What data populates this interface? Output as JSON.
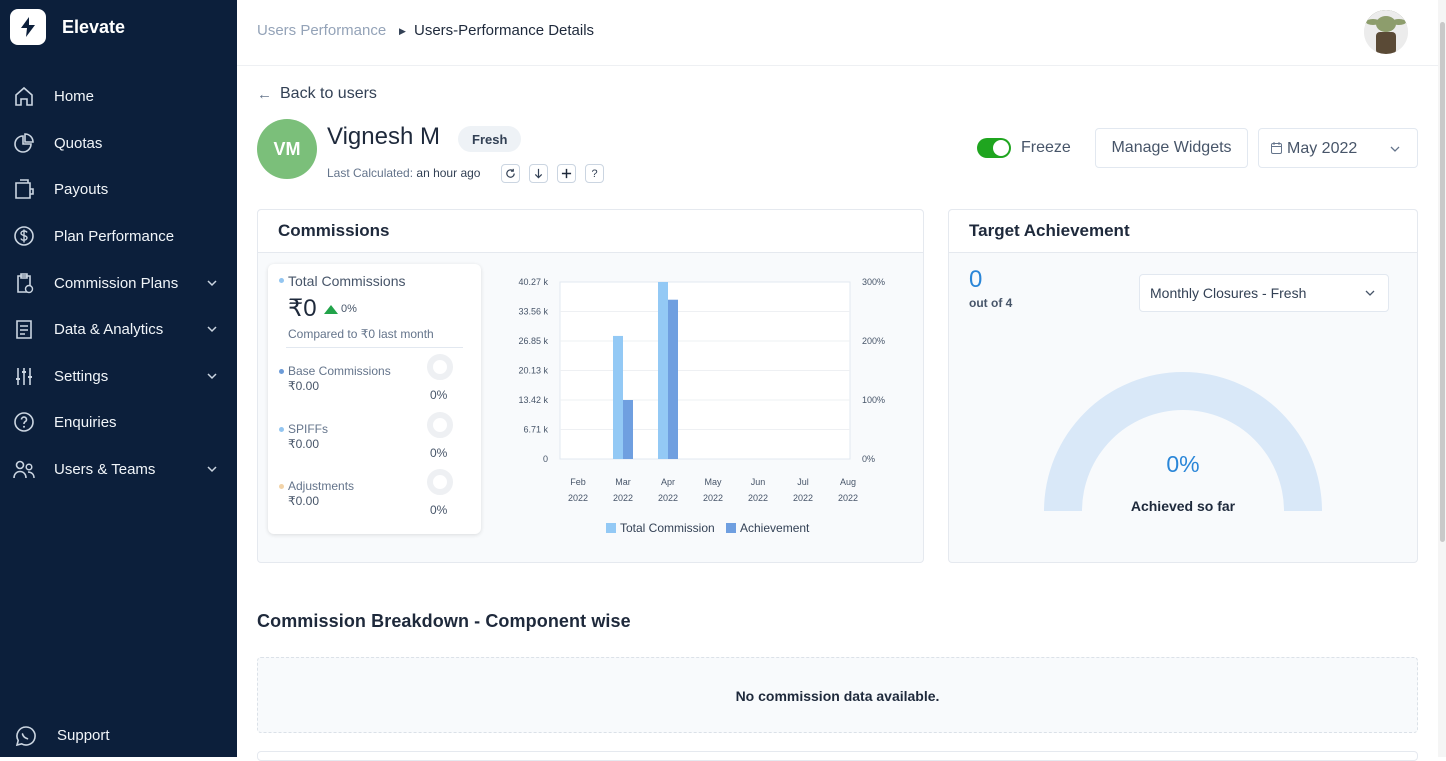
{
  "app": {
    "name": "Elevate"
  },
  "sidebar": {
    "items": [
      {
        "label": "Home",
        "icon": "home-icon",
        "has_submenu": false
      },
      {
        "label": "Quotas",
        "icon": "pie-chart-icon",
        "has_submenu": false
      },
      {
        "label": "Payouts",
        "icon": "wallet-icon",
        "has_submenu": false
      },
      {
        "label": "Plan Performance",
        "icon": "dollar-circle-icon",
        "has_submenu": false
      },
      {
        "label": "Commission Plans",
        "icon": "clipboard-icon",
        "has_submenu": true
      },
      {
        "label": "Data & Analytics",
        "icon": "document-icon",
        "has_submenu": true
      },
      {
        "label": "Settings",
        "icon": "sliders-icon",
        "has_submenu": true
      },
      {
        "label": "Enquiries",
        "icon": "question-circle-icon",
        "has_submenu": false
      },
      {
        "label": "Users & Teams",
        "icon": "users-icon",
        "has_submenu": true
      }
    ],
    "support_label": "Support"
  },
  "breadcrumb": {
    "parent": "Users Performance",
    "current": "Users-Performance Details"
  },
  "back_label": "Back to users",
  "user": {
    "initials": "VM",
    "name": "Vignesh M",
    "badge": "Fresh",
    "last_calculated_label": "Last Calculated:",
    "last_calculated_value": "an hour ago"
  },
  "controls": {
    "freeze_label": "Freeze",
    "freeze_on": true,
    "manage_widgets_label": "Manage Widgets",
    "period_value": "May 2022"
  },
  "commissions": {
    "title": "Commissions",
    "total_label": "Total Commissions",
    "total_value": "₹0",
    "total_change": "0%",
    "compared_text": "Compared to ₹0 last month",
    "components": [
      {
        "label": "Base Commissions",
        "value": "₹0.00",
        "pct": "0%",
        "color": "#6c9bd8"
      },
      {
        "label": "SPIFFs",
        "value": "₹0.00",
        "pct": "0%",
        "color": "#93c5f0"
      },
      {
        "label": "Adjustments",
        "value": "₹0.00",
        "pct": "0%",
        "color": "#f2d3a8"
      }
    ]
  },
  "chart_data": {
    "type": "bar",
    "categories": [
      "Feb 2022",
      "Mar 2022",
      "Apr 2022",
      "May 2022",
      "Jun 2022",
      "Jul 2022",
      "Aug 2022"
    ],
    "category_lines": [
      [
        "Feb",
        "2022"
      ],
      [
        "Mar",
        "2022"
      ],
      [
        "Apr",
        "2022"
      ],
      [
        "May",
        "2022"
      ],
      [
        "Jun",
        "2022"
      ],
      [
        "Jul",
        "2022"
      ],
      [
        "Aug",
        "2022"
      ]
    ],
    "series": [
      {
        "name": "Total Commission",
        "axis": "left",
        "color": "#93c9f5",
        "values": [
          0,
          28000,
          40270,
          0,
          0,
          0,
          0
        ]
      },
      {
        "name": "Achievement",
        "axis": "right",
        "color": "#6f9fe0",
        "values": [
          0,
          100,
          270,
          0,
          0,
          0,
          0
        ]
      }
    ],
    "y_left": {
      "ticks": [
        "0",
        "6.71 k",
        "13.42 k",
        "20.13 k",
        "26.85 k",
        "33.56 k",
        "40.27 k"
      ],
      "range": [
        0,
        40270
      ]
    },
    "y_right": {
      "ticks": [
        "0%",
        "100%",
        "200%",
        "300%"
      ],
      "range": [
        0,
        300
      ]
    },
    "legend": "bottom"
  },
  "target": {
    "title": "Target Achievement",
    "achieved_count": "0",
    "out_of_text": "out of 4",
    "select_value": "Monthly Closures - Fresh",
    "gauge_percent": "0%",
    "gauge_fill": 0,
    "gauge_label": "Achieved so far"
  },
  "breakdown": {
    "title": "Commission Breakdown - Component wise",
    "empty_text": "No commission data available."
  }
}
